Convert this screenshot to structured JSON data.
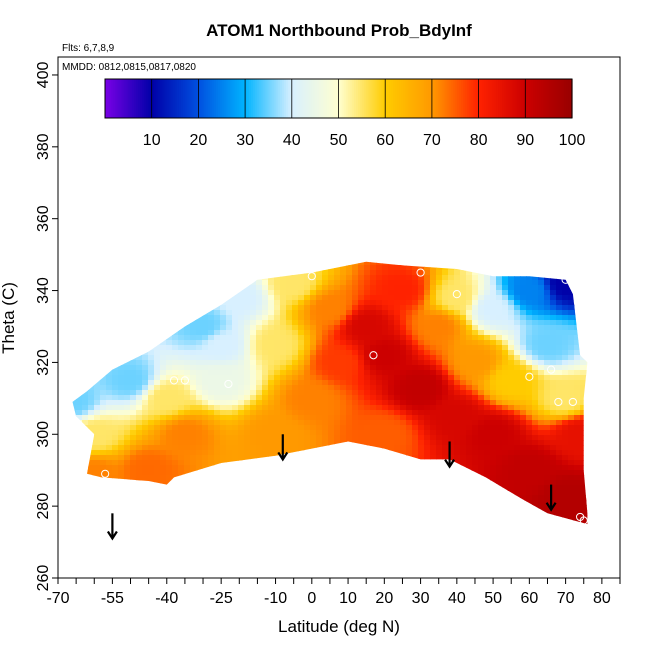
{
  "chart_data": {
    "type": "heatmap",
    "title": "ATOM1 Northbound Prob_BdyInf",
    "subtitle": "Flts: 6,7,8,9",
    "annotation": "MMDD: 0812,0815,0817,0820",
    "xlabel": "Latitude (deg N)",
    "ylabel": "Theta (C)",
    "xlim": [
      -70,
      85
    ],
    "ylim": [
      260,
      405
    ],
    "x_ticks": [
      -70,
      -55,
      -40,
      -25,
      -10,
      0,
      10,
      20,
      30,
      40,
      50,
      60,
      70,
      80
    ],
    "y_ticks": [
      260,
      280,
      300,
      320,
      340,
      360,
      380,
      400
    ],
    "colorbar": {
      "range": [
        0,
        100
      ],
      "ticks": [
        10,
        20,
        30,
        40,
        50,
        60,
        70,
        80,
        90,
        100
      ],
      "colors": [
        "#7a00e6",
        "#0000a8",
        "#0050e0",
        "#00b4ff",
        "#d8f0ff",
        "#ffffd0",
        "#ffcc00",
        "#ff9900",
        "#ff2200",
        "#cc0000",
        "#990000"
      ]
    },
    "region_outline": [
      [
        -66,
        309
      ],
      [
        -62,
        312
      ],
      [
        -55,
        318
      ],
      [
        -45,
        323
      ],
      [
        -35,
        330
      ],
      [
        -25,
        336
      ],
      [
        -15,
        343
      ],
      [
        0,
        345
      ],
      [
        15,
        348
      ],
      [
        25,
        347
      ],
      [
        40,
        346
      ],
      [
        50,
        344
      ],
      [
        60,
        344
      ],
      [
        70,
        343
      ],
      [
        72,
        339
      ],
      [
        74,
        322
      ],
      [
        76,
        320
      ],
      [
        75,
        310
      ],
      [
        75,
        290
      ],
      [
        76,
        278
      ],
      [
        76,
        275
      ],
      [
        65,
        278
      ],
      [
        58,
        282
      ],
      [
        48,
        288
      ],
      [
        38,
        293
      ],
      [
        30,
        293
      ],
      [
        20,
        296
      ],
      [
        10,
        298
      ],
      [
        0,
        296
      ],
      [
        -10,
        294
      ],
      [
        -25,
        292
      ],
      [
        -38,
        288
      ],
      [
        -40,
        286
      ],
      [
        -45,
        287
      ],
      [
        -58,
        288
      ],
      [
        -62,
        289
      ],
      [
        -60,
        300
      ],
      [
        -65,
        305
      ]
    ],
    "field_control_points": [
      {
        "lat": -66,
        "theta": 309,
        "value": 35
      },
      {
        "lat": -60,
        "theta": 289,
        "value": 72
      },
      {
        "lat": -60,
        "theta": 300,
        "value": 55
      },
      {
        "lat": -50,
        "theta": 315,
        "value": 35
      },
      {
        "lat": -40,
        "theta": 310,
        "value": 55
      },
      {
        "lat": -35,
        "theta": 300,
        "value": 72
      },
      {
        "lat": -45,
        "theta": 290,
        "value": 74
      },
      {
        "lat": -30,
        "theta": 330,
        "value": 35
      },
      {
        "lat": -25,
        "theta": 315,
        "value": 45
      },
      {
        "lat": -20,
        "theta": 338,
        "value": 40
      },
      {
        "lat": -10,
        "theta": 325,
        "value": 55
      },
      {
        "lat": -10,
        "theta": 300,
        "value": 70
      },
      {
        "lat": -5,
        "theta": 342,
        "value": 55
      },
      {
        "lat": 5,
        "theta": 335,
        "value": 72
      },
      {
        "lat": 8,
        "theta": 320,
        "value": 78
      },
      {
        "lat": 15,
        "theta": 330,
        "value": 88
      },
      {
        "lat": 20,
        "theta": 322,
        "value": 90
      },
      {
        "lat": 25,
        "theta": 340,
        "value": 80
      },
      {
        "lat": 30,
        "theta": 313,
        "value": 92
      },
      {
        "lat": 40,
        "theta": 305,
        "value": 88
      },
      {
        "lat": 50,
        "theta": 300,
        "value": 90
      },
      {
        "lat": 60,
        "theta": 290,
        "value": 92
      },
      {
        "lat": 70,
        "theta": 282,
        "value": 95
      },
      {
        "lat": 35,
        "theta": 330,
        "value": 72
      },
      {
        "lat": 40,
        "theta": 338,
        "value": 55
      },
      {
        "lat": 45,
        "theta": 320,
        "value": 70
      },
      {
        "lat": 50,
        "theta": 335,
        "value": 40
      },
      {
        "lat": 55,
        "theta": 315,
        "value": 60
      },
      {
        "lat": 60,
        "theta": 340,
        "value": 25
      },
      {
        "lat": 65,
        "theta": 325,
        "value": 35
      },
      {
        "lat": 70,
        "theta": 342,
        "value": 10
      },
      {
        "lat": 70,
        "theta": 310,
        "value": 55
      },
      {
        "lat": 74,
        "theta": 300,
        "value": 85
      },
      {
        "lat": 20,
        "theta": 300,
        "value": 75
      },
      {
        "lat": 0,
        "theta": 310,
        "value": 72
      },
      {
        "lat": -25,
        "theta": 325,
        "value": 40
      }
    ],
    "markers": [
      {
        "lat": -57,
        "theta": 289
      },
      {
        "lat": -38,
        "theta": 315
      },
      {
        "lat": -35,
        "theta": 315
      },
      {
        "lat": -23,
        "theta": 314
      },
      {
        "lat": 0,
        "theta": 344
      },
      {
        "lat": 17,
        "theta": 322
      },
      {
        "lat": 30,
        "theta": 345
      },
      {
        "lat": 40,
        "theta": 339
      },
      {
        "lat": 60,
        "theta": 316
      },
      {
        "lat": 66,
        "theta": 318
      },
      {
        "lat": 68,
        "theta": 309
      },
      {
        "lat": 70,
        "theta": 343
      },
      {
        "lat": 72,
        "theta": 309
      },
      {
        "lat": 74,
        "theta": 277
      },
      {
        "lat": 75,
        "theta": 276
      }
    ],
    "arrows": [
      {
        "lat": -55,
        "theta_top": 278,
        "theta_bottom": 271
      },
      {
        "lat": -8,
        "theta_top": 300,
        "theta_bottom": 293
      },
      {
        "lat": 38,
        "theta_top": 298,
        "theta_bottom": 291
      },
      {
        "lat": 66,
        "theta_top": 286,
        "theta_bottom": 279
      }
    ]
  }
}
